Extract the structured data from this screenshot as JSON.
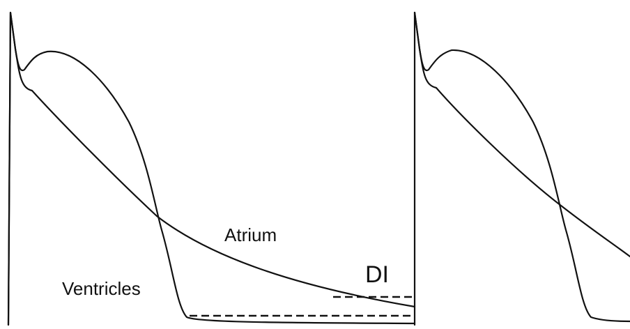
{
  "labels": {
    "atrium": "Atrium",
    "ventricles": "Ventricles",
    "di": "DI"
  },
  "colors": {
    "background": "#ffffff",
    "stroke": "#111111"
  }
}
